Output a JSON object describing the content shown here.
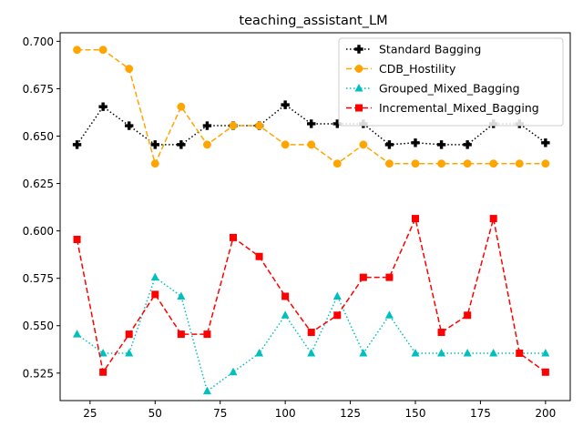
{
  "chart_data": {
    "type": "line",
    "title": "teaching_assistant_LM",
    "xlabel": "",
    "ylabel": "",
    "xlim": [
      13.5,
      209.5
    ],
    "ylim": [
      0.5105,
      0.7045
    ],
    "xticks": [
      25,
      50,
      75,
      100,
      125,
      150,
      175,
      200
    ],
    "yticks": [
      0.525,
      0.55,
      0.575,
      0.6,
      0.625,
      0.65,
      0.675,
      0.7
    ],
    "ytick_labels": [
      "0.525",
      "0.550",
      "0.575",
      "0.600",
      "0.625",
      "0.650",
      "0.675",
      "0.700"
    ],
    "grid": false,
    "legend_position": "top-right",
    "x": [
      20,
      30,
      40,
      50,
      60,
      70,
      80,
      90,
      100,
      110,
      120,
      130,
      140,
      150,
      160,
      170,
      180,
      190,
      200
    ],
    "series": [
      {
        "name": "Standard Bagging",
        "color": "#000000",
        "line_style": "dotted",
        "marker": "plus",
        "values": [
          0.6455,
          0.6655,
          0.6555,
          0.6455,
          0.6455,
          0.6555,
          0.6555,
          0.6555,
          0.6665,
          0.6565,
          0.6565,
          0.6565,
          0.6455,
          0.6465,
          0.6455,
          0.6455,
          0.6565,
          0.6565,
          0.6465
        ]
      },
      {
        "name": "CDB_Hostility",
        "color": "#ffa500",
        "line_style": "dashed",
        "marker": "circle",
        "values": [
          0.6955,
          0.6955,
          0.6855,
          0.6355,
          0.6655,
          0.6455,
          0.6555,
          0.6555,
          0.6455,
          0.6455,
          0.6355,
          0.6455,
          0.6355,
          0.6355,
          0.6355,
          0.6355,
          0.6355,
          0.6355,
          0.6355
        ]
      },
      {
        "name": "Grouped_Mixed_Bagging",
        "color": "#00bfbf",
        "line_style": "dotted",
        "marker": "triangle",
        "values": [
          0.5455,
          0.5355,
          0.5355,
          0.5755,
          0.5655,
          0.5155,
          0.5255,
          0.5355,
          0.5555,
          0.5355,
          0.5655,
          0.5355,
          0.5555,
          0.5355,
          0.5355,
          0.5355,
          0.5355,
          0.5355,
          0.5355
        ]
      },
      {
        "name": "Incremental_Mixed_Bagging",
        "color": "#ff0000",
        "line_style": "dashed",
        "marker": "square",
        "values": [
          0.5955,
          0.5255,
          0.5455,
          0.5665,
          0.5455,
          0.5455,
          0.5965,
          0.5865,
          0.5655,
          0.5465,
          0.5555,
          0.5755,
          0.5755,
          0.6065,
          0.5465,
          0.5555,
          0.6065,
          0.5355,
          0.5255
        ]
      }
    ]
  }
}
